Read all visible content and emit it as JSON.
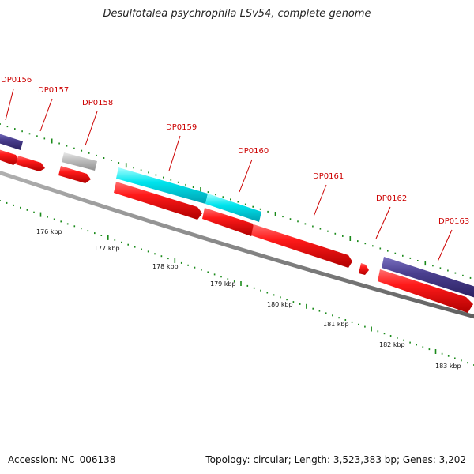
{
  "title": "Desulfotalea psychrophila LSv54, complete genome",
  "footer": {
    "accession": "Accession: NC_006138",
    "summary": "Topology: circular; Length: 3,523,383 bp; Genes: 3,202"
  },
  "colors": {
    "forward_gene": "#4a3f8f",
    "reverse_gene": "#ee1111",
    "rna_gene": "#00e5ee",
    "pseudo_gene": "#c0c0c0",
    "backbone": "#808080",
    "tick": "#1a8a1a",
    "label": "#cc0000"
  },
  "gene_labels": [
    "DP0156",
    "DP0157",
    "DP0158",
    "DP0159",
    "DP0160",
    "DP0161",
    "DP0162",
    "DP0163"
  ],
  "scale_labels": [
    "176 kbp",
    "177 kbp",
    "178 kbp",
    "179 kbp",
    "180 kbp",
    "181 kbp",
    "182 kbp",
    "183 kbp"
  ]
}
